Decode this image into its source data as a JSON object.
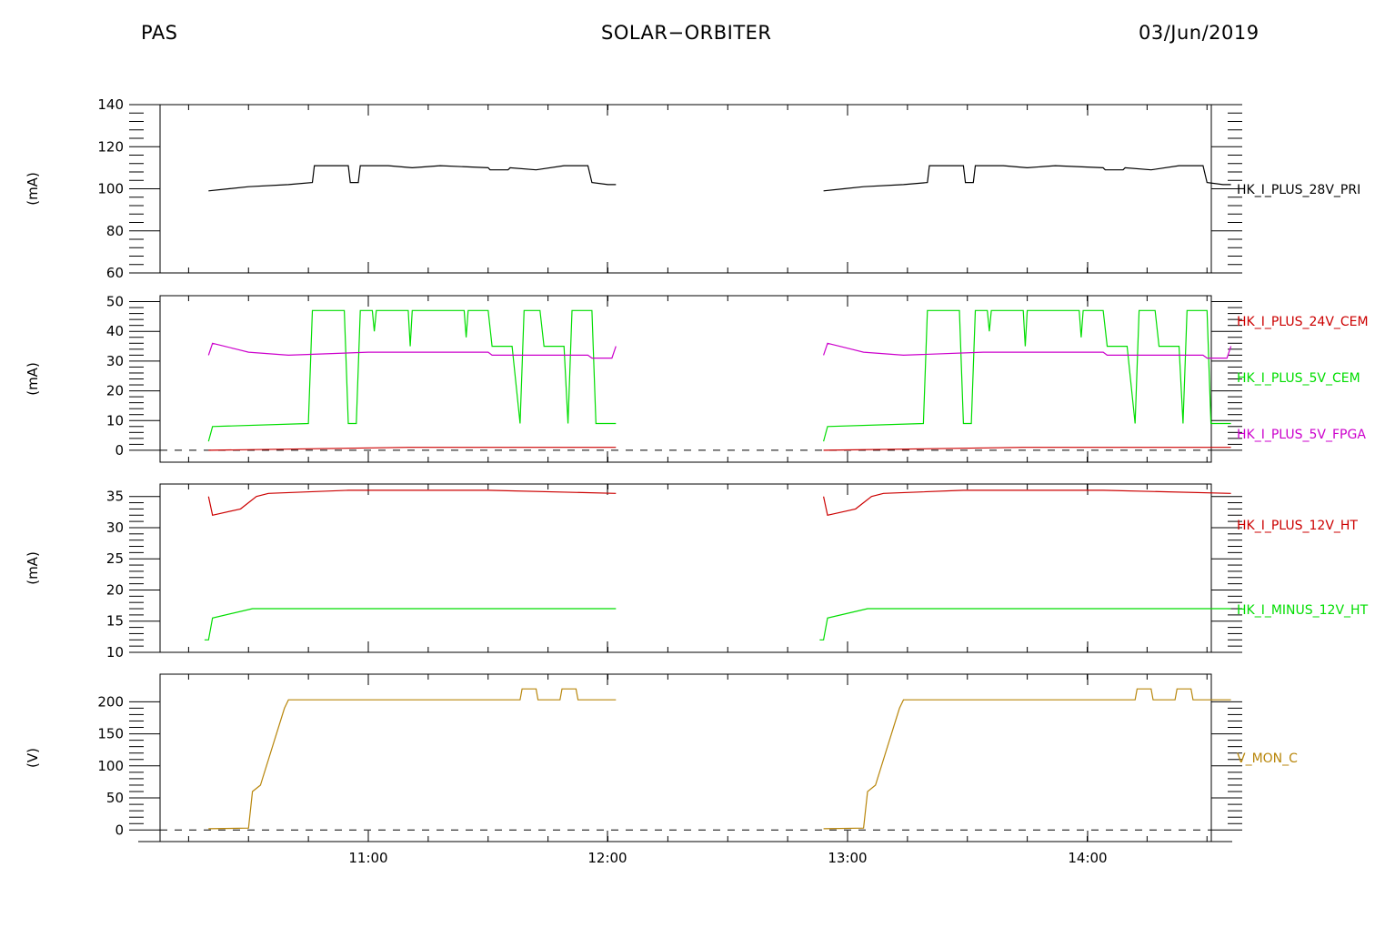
{
  "header": {
    "instrument": "PAS",
    "mission": "SOLAR−ORBITER",
    "date": "03/Jun/2019"
  },
  "chart_data": [
    {
      "type": "line",
      "ylabel": "(mA)",
      "ylim": [
        60,
        140
      ],
      "yticks": [
        "140",
        "120",
        "100",
        "80",
        "60"
      ],
      "series": [
        {
          "name": "HK_I_PLUS_28V_PRI",
          "color": "#000000",
          "points": [
            [
              "10:20",
              99
            ],
            [
              "10:25",
              100
            ],
            [
              "10:30",
              101
            ],
            [
              "10:40",
              102
            ],
            [
              "10:46",
              103
            ],
            [
              "10:46.5",
              111
            ],
            [
              "10:55",
              111
            ],
            [
              "10:55.5",
              103
            ],
            [
              "10:57.5",
              103
            ],
            [
              "10:58",
              111
            ],
            [
              "11:05",
              111
            ],
            [
              "11:11",
              110
            ],
            [
              "11:18",
              111
            ],
            [
              "11:30",
              110
            ],
            [
              "11:30.5",
              109
            ],
            [
              "11:35",
              109
            ],
            [
              "11:35.5",
              110
            ],
            [
              "11:42",
              109
            ],
            [
              "11:49",
              111
            ],
            [
              "11:55",
              111
            ],
            [
              "11:56",
              103
            ],
            [
              "12:00",
              102
            ],
            [
              "12:02",
              102
            ]
          ]
        }
      ]
    },
    {
      "type": "line",
      "ylabel": "(mA)",
      "ylim": [
        -4,
        52
      ],
      "yticks": [
        "50",
        "40",
        "30",
        "20",
        "10",
        "0"
      ],
      "series": [
        {
          "name": "HK_I_PLUS_24V_CEM",
          "color": "#cc0000",
          "points": [
            [
              "10:20",
              0
            ],
            [
              "10:45",
              0.5
            ],
            [
              "11:10",
              1
            ],
            [
              "11:40",
              1
            ],
            [
              "12:02",
              1
            ]
          ]
        },
        {
          "name": "HK_I_PLUS_5V_CEM",
          "color": "#00dd00",
          "points": [
            [
              "10:20",
              3
            ],
            [
              "10:21",
              8
            ],
            [
              "10:45",
              9
            ],
            [
              "10:46",
              47
            ],
            [
              "10:54",
              47
            ],
            [
              "10:55",
              9
            ],
            [
              "10:57",
              9
            ],
            [
              "10:58",
              47
            ],
            [
              "11:01",
              47
            ],
            [
              "11:01.5",
              40
            ],
            [
              "11:02",
              47
            ],
            [
              "11:10",
              47
            ],
            [
              "11:10.5",
              35
            ],
            [
              "11:11",
              47
            ],
            [
              "11:24",
              47
            ],
            [
              "11:24.5",
              38
            ],
            [
              "11:25",
              47
            ],
            [
              "11:30",
              47
            ],
            [
              "11:31",
              35
            ],
            [
              "11:36",
              35
            ],
            [
              "11:38",
              9
            ],
            [
              "11:39",
              47
            ],
            [
              "11:43",
              47
            ],
            [
              "11:44",
              35
            ],
            [
              "11:49",
              35
            ],
            [
              "11:50",
              9
            ],
            [
              "11:51",
              47
            ],
            [
              "11:56",
              47
            ],
            [
              "11:57",
              9
            ],
            [
              "12:02",
              9
            ]
          ]
        },
        {
          "name": "HK_I_PLUS_5V_FPGA",
          "color": "#cc00cc",
          "points": [
            [
              "10:20",
              32
            ],
            [
              "10:21",
              36
            ],
            [
              "10:24",
              35
            ],
            [
              "10:27",
              34
            ],
            [
              "10:30",
              33
            ],
            [
              "10:40",
              32
            ],
            [
              "11:00",
              33
            ],
            [
              "11:20",
              33
            ],
            [
              "11:30",
              33
            ],
            [
              "11:31",
              32
            ],
            [
              "11:55",
              32
            ],
            [
              "11:56",
              31
            ],
            [
              "12:01",
              31
            ],
            [
              "12:02",
              35
            ]
          ]
        }
      ]
    },
    {
      "type": "line",
      "ylabel": "(mA)",
      "ylim": [
        10,
        37
      ],
      "yticks": [
        "35",
        "30",
        "25",
        "20",
        "15",
        "10"
      ],
      "series": [
        {
          "name": "HK_I_PLUS_12V_HT",
          "color": "#cc0000",
          "points": [
            [
              "10:20",
              35
            ],
            [
              "10:21",
              32
            ],
            [
              "10:28",
              33
            ],
            [
              "10:32",
              35
            ],
            [
              "10:35",
              35.5
            ],
            [
              "10:55",
              36
            ],
            [
              "11:30",
              36
            ],
            [
              "12:02",
              35.5
            ]
          ]
        },
        {
          "name": "HK_I_MINUS_12V_HT",
          "color": "#00dd00",
          "points": [
            [
              "10:19",
              12
            ],
            [
              "10:20",
              12
            ],
            [
              "10:21",
              15.5
            ],
            [
              "10:31",
              17
            ],
            [
              "12:02",
              17
            ]
          ]
        }
      ]
    },
    {
      "type": "line",
      "ylabel": "(V)",
      "ylim": [
        -18,
        243
      ],
      "yticks": [
        "200",
        "150",
        "100",
        "50",
        "0"
      ],
      "series": [
        {
          "name": "V_MON_C",
          "color": "#b8860b",
          "points": [
            [
              "10:20",
              2
            ],
            [
              "10:30",
              3
            ],
            [
              "10:31",
              60
            ],
            [
              "10:33",
              70
            ],
            [
              "10:36",
              130
            ],
            [
              "10:39",
              190
            ],
            [
              "10:40",
              203
            ],
            [
              "11:38",
              203
            ],
            [
              "11:38.5",
              220
            ],
            [
              "11:42",
              220
            ],
            [
              "11:42.5",
              203
            ],
            [
              "11:48",
              203
            ],
            [
              "11:48.5",
              220
            ],
            [
              "11:52",
              220
            ],
            [
              "11:52.5",
              203
            ],
            [
              "12:02",
              203
            ]
          ]
        }
      ]
    }
  ],
  "x_axis": {
    "ticks": [
      "11:00",
      "12:00",
      "13:00",
      "14:00"
    ]
  }
}
